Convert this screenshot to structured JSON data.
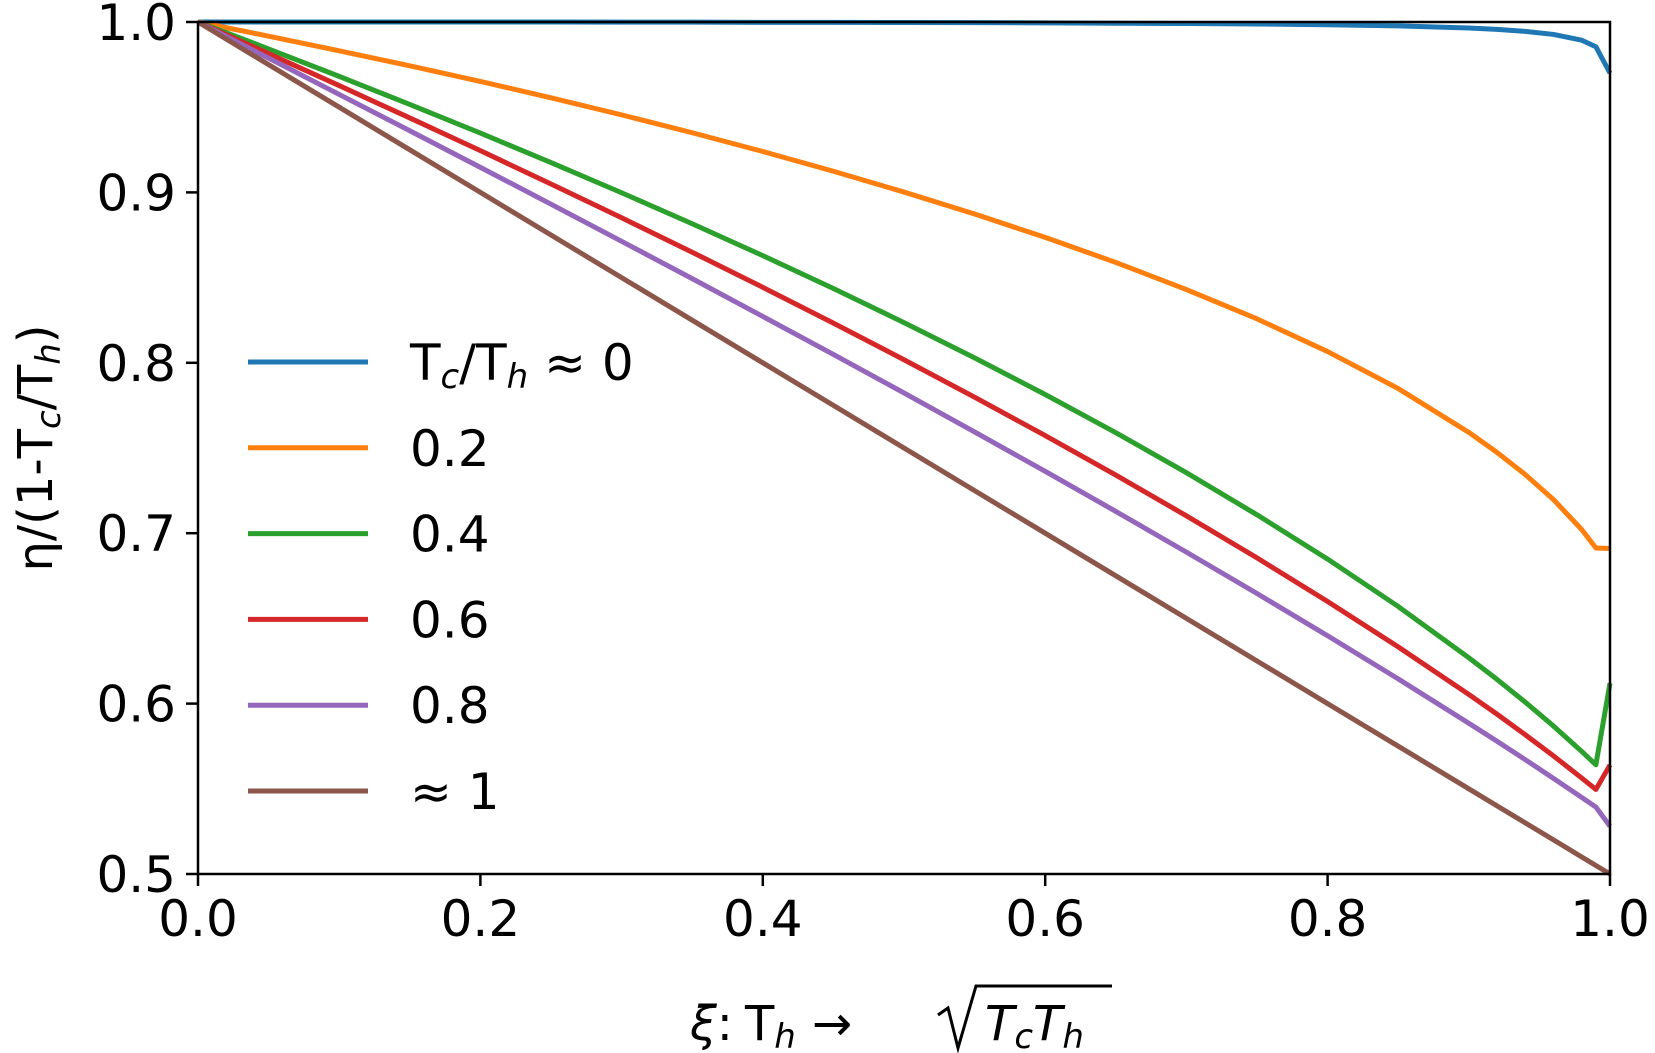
{
  "chart_data": {
    "type": "line",
    "xlabel_parts": {
      "xi": "ξ",
      "colon": ":",
      "Th_T": "T",
      "Th_sub": "h",
      "arrow": "→",
      "sqrt_T1": "T",
      "sqrt_c": "c",
      "sqrt_T2": "T",
      "sqrt_h": "h"
    },
    "ylabel_parts": {
      "eta": "η/(1-T",
      "c": "c",
      "mid": "/T",
      "h": "h",
      "end": ")"
    },
    "xlim": [
      0.0,
      1.0
    ],
    "ylim": [
      0.5,
      1.0
    ],
    "x_ticks": [
      "0.0",
      "0.2",
      "0.4",
      "0.6",
      "0.8",
      "1.0"
    ],
    "y_ticks": [
      "0.5",
      "0.6",
      "0.7",
      "0.8",
      "0.9",
      "1.0"
    ],
    "x_tick_values": [
      0.0,
      0.2,
      0.4,
      0.6,
      0.8,
      1.0
    ],
    "y_tick_values": [
      0.5,
      0.6,
      0.7,
      0.8,
      0.9,
      1.0
    ],
    "grid": false,
    "legend_position": "center-left",
    "legend_first_parts": {
      "T1": "T",
      "c": "c",
      "slash": "/T",
      "h": "h",
      "approx": " ≈ 0"
    },
    "x": [
      0.0,
      0.05,
      0.1,
      0.15,
      0.2,
      0.25,
      0.3,
      0.35,
      0.4,
      0.45,
      0.5,
      0.55,
      0.6,
      0.65,
      0.7,
      0.75,
      0.8,
      0.85,
      0.9,
      0.92,
      0.94,
      0.96,
      0.98,
      0.99,
      1.0
    ],
    "series": [
      {
        "name": "Tc/Th ≈ 0",
        "color": "#1f77b4",
        "values": [
          1.0,
          1.0,
          1.0,
          1.0,
          1.0,
          1.0,
          0.9999,
          0.9999,
          0.9998,
          0.9998,
          0.9997,
          0.9996,
          0.9995,
          0.9993,
          0.9991,
          0.9988,
          0.9984,
          0.9977,
          0.9965,
          0.9957,
          0.9945,
          0.9927,
          0.9893,
          0.9855,
          0.97
        ]
      },
      {
        "name": "0.2",
        "color": "#ff7f0e",
        "values": [
          1.0,
          0.9917,
          0.9831,
          0.9743,
          0.9651,
          0.9555,
          0.9455,
          0.935,
          0.924,
          0.9124,
          0.9002,
          0.8873,
          0.8736,
          0.8589,
          0.843,
          0.8258,
          0.8066,
          0.7849,
          0.7592,
          0.7474,
          0.7344,
          0.7197,
          0.7021,
          0.6913,
          0.691
        ]
      },
      {
        "name": "0.4",
        "color": "#2ca02c",
        "values": [
          1.0,
          0.9842,
          0.9681,
          0.9516,
          0.9348,
          0.9175,
          0.8998,
          0.8816,
          0.8629,
          0.8436,
          0.8236,
          0.8029,
          0.7814,
          0.759,
          0.7355,
          0.7108,
          0.6848,
          0.657,
          0.6269,
          0.6142,
          0.6008,
          0.5868,
          0.5719,
          0.5641,
          0.612
        ]
      },
      {
        "name": "0.6",
        "color": "#d62728",
        "values": [
          1.0,
          0.9814,
          0.9627,
          0.9437,
          0.9245,
          0.9049,
          0.8851,
          0.8649,
          0.8443,
          0.8233,
          0.8018,
          0.7798,
          0.7573,
          0.7341,
          0.7102,
          0.6855,
          0.6599,
          0.6333,
          0.6054,
          0.5938,
          0.5817,
          0.5693,
          0.5563,
          0.5496,
          0.564
        ]
      },
      {
        "name": "0.8",
        "color": "#9467bd",
        "values": [
          1.0,
          0.9788,
          0.9575,
          0.9362,
          0.9147,
          0.8931,
          0.8713,
          0.8494,
          0.8272,
          0.8049,
          0.7823,
          0.7594,
          0.7363,
          0.7128,
          0.6889,
          0.6646,
          0.6398,
          0.6145,
          0.5885,
          0.5779,
          0.5671,
          0.5561,
          0.5449,
          0.5393,
          0.528
        ]
      },
      {
        "name": "≈ 1",
        "color": "#8c564b",
        "values": [
          1.0,
          0.975,
          0.95,
          0.925,
          0.9,
          0.875,
          0.85,
          0.825,
          0.8,
          0.775,
          0.75,
          0.725,
          0.7,
          0.675,
          0.65,
          0.625,
          0.6,
          0.575,
          0.55,
          0.54,
          0.53,
          0.52,
          0.51,
          0.505,
          0.5
        ]
      }
    ]
  }
}
